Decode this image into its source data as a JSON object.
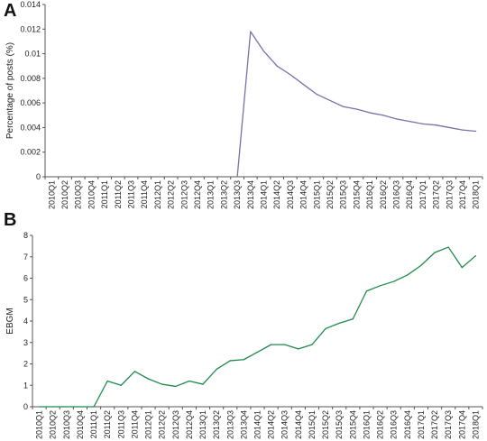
{
  "chart_data": [
    {
      "panel": "A",
      "type": "line",
      "title": "",
      "xlabel": "",
      "ylabel": "Percentage of posts (%)",
      "ylim": [
        0,
        0.014
      ],
      "yticks": [
        "0",
        "0.002",
        "0.004",
        "0.006",
        "0.008",
        "0.01",
        "0.012",
        "0.014"
      ],
      "grid": false,
      "color": "#7b6fa8",
      "categories": [
        "2010Q1",
        "2010Q2",
        "2010Q3",
        "2010Q4",
        "2011Q1",
        "2011Q2",
        "2011Q3",
        "2011Q4",
        "2012Q1",
        "2012Q2",
        "2012Q3",
        "2012Q4",
        "2013Q1",
        "2013Q2",
        "2013Q3",
        "2013Q4",
        "2014Q1",
        "2014Q2",
        "2014Q3",
        "2014Q4",
        "2015Q1",
        "2015Q2",
        "2015Q3",
        "2015Q4",
        "2016Q1",
        "2016Q2",
        "2016Q3",
        "2016Q4",
        "2017Q1",
        "2017Q2",
        "2017Q3",
        "2017Q4",
        "2018Q1"
      ],
      "series": [
        {
          "values": [
            null,
            null,
            null,
            null,
            null,
            null,
            null,
            null,
            null,
            null,
            null,
            null,
            null,
            null,
            0,
            0.0118,
            0.0102,
            0.009,
            0.0083,
            0.0075,
            0.0067,
            0.0062,
            0.0057,
            0.0055,
            0.0052,
            0.005,
            0.0047,
            0.0045,
            0.0043,
            0.0042,
            0.004,
            0.0038,
            0.0037
          ]
        }
      ]
    },
    {
      "panel": "B",
      "type": "line",
      "title": "",
      "xlabel": "",
      "ylabel": "EBGM",
      "ylim": [
        0,
        8
      ],
      "yticks": [
        "0",
        "1",
        "2",
        "3",
        "4",
        "5",
        "6",
        "7",
        "8"
      ],
      "grid": false,
      "color": "#1f8a4c",
      "categories": [
        "2010Q1",
        "2010Q2",
        "2010Q3",
        "2010Q4",
        "2011Q1",
        "2011Q2",
        "2011Q3",
        "2011Q4",
        "2012Q1",
        "2012Q2",
        "2012Q3",
        "2012Q4",
        "2013Q1",
        "2013Q2",
        "2013Q3",
        "2013Q4",
        "2014Q1",
        "2014Q2",
        "2014Q3",
        "2014Q4",
        "2015Q1",
        "2015Q2",
        "2015Q3",
        "2015Q4",
        "2016Q1",
        "2016Q2",
        "2016Q3",
        "2016Q4",
        "2017Q1",
        "2017Q2",
        "2017Q3",
        "2017Q4",
        "2018Q1"
      ],
      "series": [
        {
          "values": [
            0,
            0,
            0,
            0,
            0,
            1.2,
            1.0,
            1.65,
            1.3,
            1.05,
            0.95,
            1.2,
            1.05,
            1.75,
            2.15,
            2.2,
            2.55,
            2.9,
            2.9,
            2.7,
            2.9,
            3.65,
            3.9,
            4.1,
            5.4,
            5.65,
            5.85,
            6.15,
            6.6,
            7.2,
            7.45,
            6.5,
            7.05
          ]
        }
      ]
    }
  ]
}
